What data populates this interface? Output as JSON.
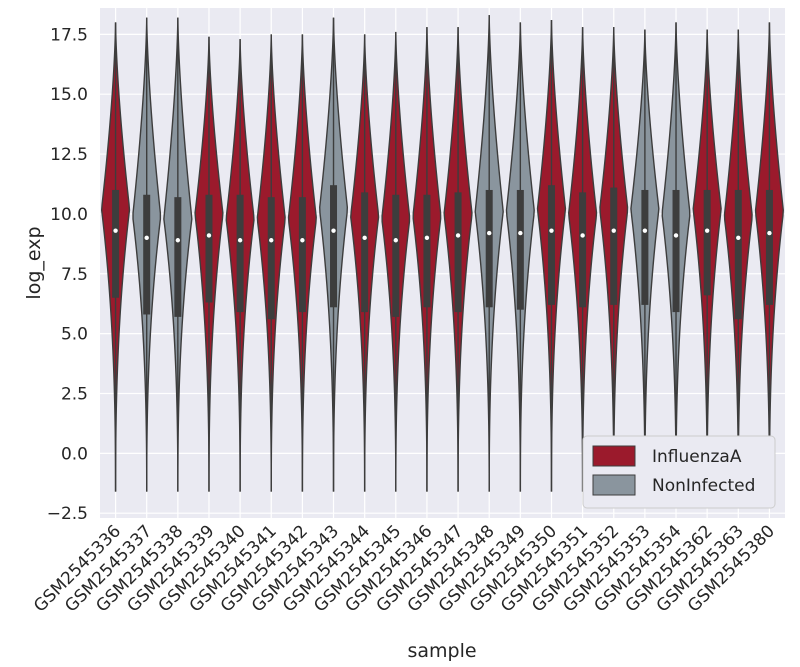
{
  "chart_data": {
    "type": "violin",
    "xlabel": "sample",
    "ylabel": "log_exp",
    "ylim": [
      -2.7,
      18.6
    ],
    "yticks": [
      -2.5,
      0.0,
      2.5,
      5.0,
      7.5,
      10.0,
      12.5,
      15.0,
      17.5
    ],
    "yticklabels": [
      "−2.5",
      "0.0",
      "2.5",
      "5.0",
      "7.5",
      "10.0",
      "12.5",
      "15.0",
      "17.5"
    ],
    "grid": true,
    "legend_position": "lower-right",
    "legend": [
      {
        "name": "InfluenzaA",
        "color": "#9b1a2c"
      },
      {
        "name": "NonInfected",
        "color": "#8a959e"
      }
    ],
    "categories": [
      "GSM2545336",
      "GSM2545337",
      "GSM2545338",
      "GSM2545339",
      "GSM2545340",
      "GSM2545341",
      "GSM2545342",
      "GSM2545343",
      "GSM2545344",
      "GSM2545345",
      "GSM2545346",
      "GSM2545347",
      "GSM2545348",
      "GSM2545349",
      "GSM2545350",
      "GSM2545351",
      "GSM2545352",
      "GSM2545353",
      "GSM2545354",
      "GSM2545362",
      "GSM2545363",
      "GSM2545380"
    ],
    "groups": [
      "InfluenzaA",
      "NonInfected",
      "NonInfected",
      "InfluenzaA",
      "InfluenzaA",
      "InfluenzaA",
      "InfluenzaA",
      "NonInfected",
      "InfluenzaA",
      "InfluenzaA",
      "InfluenzaA",
      "InfluenzaA",
      "NonInfected",
      "NonInfected",
      "InfluenzaA",
      "InfluenzaA",
      "InfluenzaA",
      "NonInfected",
      "NonInfected",
      "InfluenzaA",
      "InfluenzaA",
      "InfluenzaA"
    ],
    "min": [
      -1.6,
      -1.6,
      -1.6,
      -1.6,
      -1.6,
      -1.6,
      -1.6,
      -1.6,
      -1.6,
      -1.6,
      -1.6,
      -1.6,
      -1.6,
      -1.6,
      -1.6,
      -1.6,
      -1.6,
      -1.6,
      -1.6,
      -1.6,
      -1.6,
      -1.6
    ],
    "max": [
      18.0,
      18.2,
      18.2,
      17.4,
      17.3,
      17.5,
      17.5,
      18.2,
      17.5,
      17.6,
      17.8,
      17.8,
      18.3,
      18.0,
      18.1,
      17.8,
      17.8,
      17.7,
      18.0,
      17.7,
      17.7,
      18.0
    ],
    "q1": [
      6.5,
      5.8,
      5.7,
      6.3,
      5.9,
      5.6,
      5.9,
      6.1,
      5.9,
      5.7,
      6.1,
      5.9,
      6.1,
      6.0,
      6.2,
      6.1,
      6.2,
      6.2,
      5.9,
      6.6,
      5.6,
      6.2
    ],
    "median": [
      9.3,
      9.0,
      8.9,
      9.1,
      8.9,
      8.9,
      8.9,
      9.3,
      9.0,
      8.9,
      9.0,
      9.1,
      9.2,
      9.2,
      9.3,
      9.1,
      9.3,
      9.3,
      9.1,
      9.3,
      9.0,
      9.2
    ],
    "q3": [
      11.0,
      10.8,
      10.7,
      10.8,
      10.8,
      10.7,
      10.7,
      11.2,
      10.9,
      10.8,
      10.8,
      10.9,
      11.0,
      11.0,
      11.2,
      10.9,
      11.1,
      11.0,
      11.0,
      11.0,
      11.0,
      11.0
    ]
  }
}
